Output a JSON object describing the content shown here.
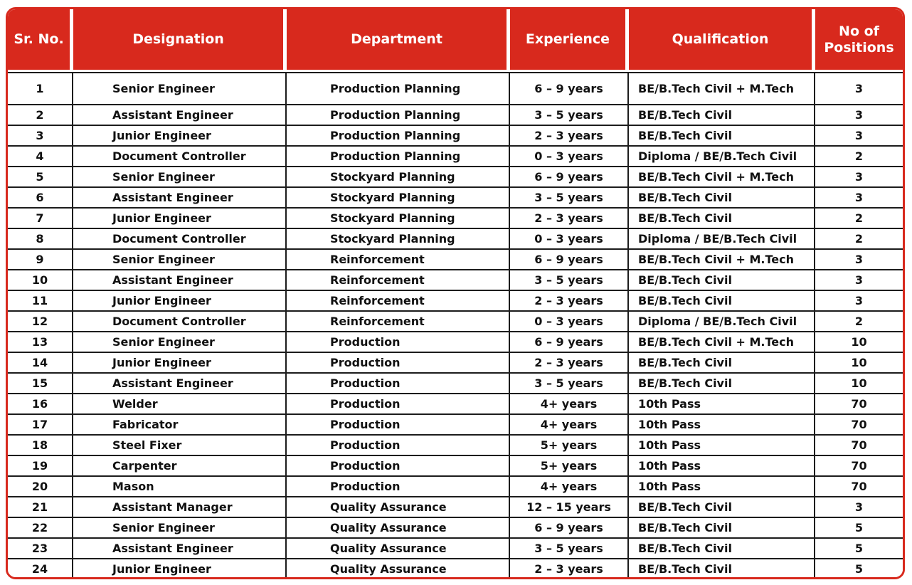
{
  "theme": {
    "header_red": "#d8291d",
    "outer_border_red": "#d8291d",
    "grid_line_black": "#1c1c1c",
    "header_text_color": "#ffffff",
    "body_text_color": "#111111"
  },
  "table": {
    "headers": [
      "Sr. No.",
      "Designation",
      "Department",
      "Experience",
      "Qualification",
      "No of Positions"
    ],
    "rows": [
      [
        "1",
        "Senior Engineer",
        "Production Planning",
        "6 – 9 years",
        "BE/B.Tech Civil + M.Tech",
        "3"
      ],
      [
        "2",
        "Assistant Engineer",
        "Production Planning",
        "3 – 5 years",
        "BE/B.Tech Civil",
        "3"
      ],
      [
        "3",
        "Junior Engineer",
        "Production Planning",
        "2 – 3 years",
        "BE/B.Tech Civil",
        "3"
      ],
      [
        "4",
        "Document Controller",
        "Production Planning",
        "0 – 3 years",
        "Diploma / BE/B.Tech Civil",
        "2"
      ],
      [
        "5",
        "Senior Engineer",
        "Stockyard Planning",
        "6 – 9 years",
        "BE/B.Tech Civil + M.Tech",
        "3"
      ],
      [
        "6",
        "Assistant Engineer",
        "Stockyard Planning",
        "3 – 5 years",
        "BE/B.Tech Civil",
        "3"
      ],
      [
        "7",
        "Junior Engineer",
        "Stockyard Planning",
        "2 – 3 years",
        "BE/B.Tech Civil",
        "2"
      ],
      [
        "8",
        "Document Controller",
        "Stockyard Planning",
        "0 – 3 years",
        "Diploma / BE/B.Tech Civil",
        "2"
      ],
      [
        "9",
        "Senior Engineer",
        "Reinforcement",
        "6 – 9 years",
        "BE/B.Tech Civil + M.Tech",
        "3"
      ],
      [
        "10",
        "Assistant Engineer",
        "Reinforcement",
        "3 – 5 years",
        "BE/B.Tech Civil",
        "3"
      ],
      [
        "11",
        "Junior Engineer",
        "Reinforcement",
        "2 – 3 years",
        "BE/B.Tech Civil",
        "3"
      ],
      [
        "12",
        "Document Controller",
        "Reinforcement",
        "0 – 3 years",
        "Diploma / BE/B.Tech Civil",
        "2"
      ],
      [
        "13",
        "Senior Engineer",
        "Production",
        "6 – 9 years",
        "BE/B.Tech Civil + M.Tech",
        "10"
      ],
      [
        "14",
        "Junior Engineer",
        "Production",
        "2 – 3 years",
        "BE/B.Tech Civil",
        "10"
      ],
      [
        "15",
        "Assistant Engineer",
        "Production",
        "3 – 5 years",
        "BE/B.Tech Civil",
        "10"
      ],
      [
        "16",
        "Welder",
        "Production",
        "4+ years",
        "10th Pass",
        "70"
      ],
      [
        "17",
        "Fabricator",
        "Production",
        "4+ years",
        "10th Pass",
        "70"
      ],
      [
        "18",
        "Steel Fixer",
        "Production",
        "5+ years",
        "10th Pass",
        "70"
      ],
      [
        "19",
        "Carpenter",
        "Production",
        "5+ years",
        "10th Pass",
        "70"
      ],
      [
        "20",
        "Mason",
        "Production",
        "4+ years",
        "10th Pass",
        "70"
      ],
      [
        "21",
        "Assistant Manager",
        "Quality Assurance",
        "12 – 15 years",
        "BE/B.Tech Civil",
        "3"
      ],
      [
        "22",
        "Senior Engineer",
        "Quality Assurance",
        "6 – 9 years",
        "BE/B.Tech Civil",
        "5"
      ],
      [
        "23",
        "Assistant Engineer",
        "Quality Assurance",
        "3 – 5 years",
        "BE/B.Tech Civil",
        "5"
      ],
      [
        "24",
        "Junior Engineer",
        "Quality Assurance",
        "2 – 3 years",
        "BE/B.Tech Civil",
        "5"
      ]
    ]
  }
}
